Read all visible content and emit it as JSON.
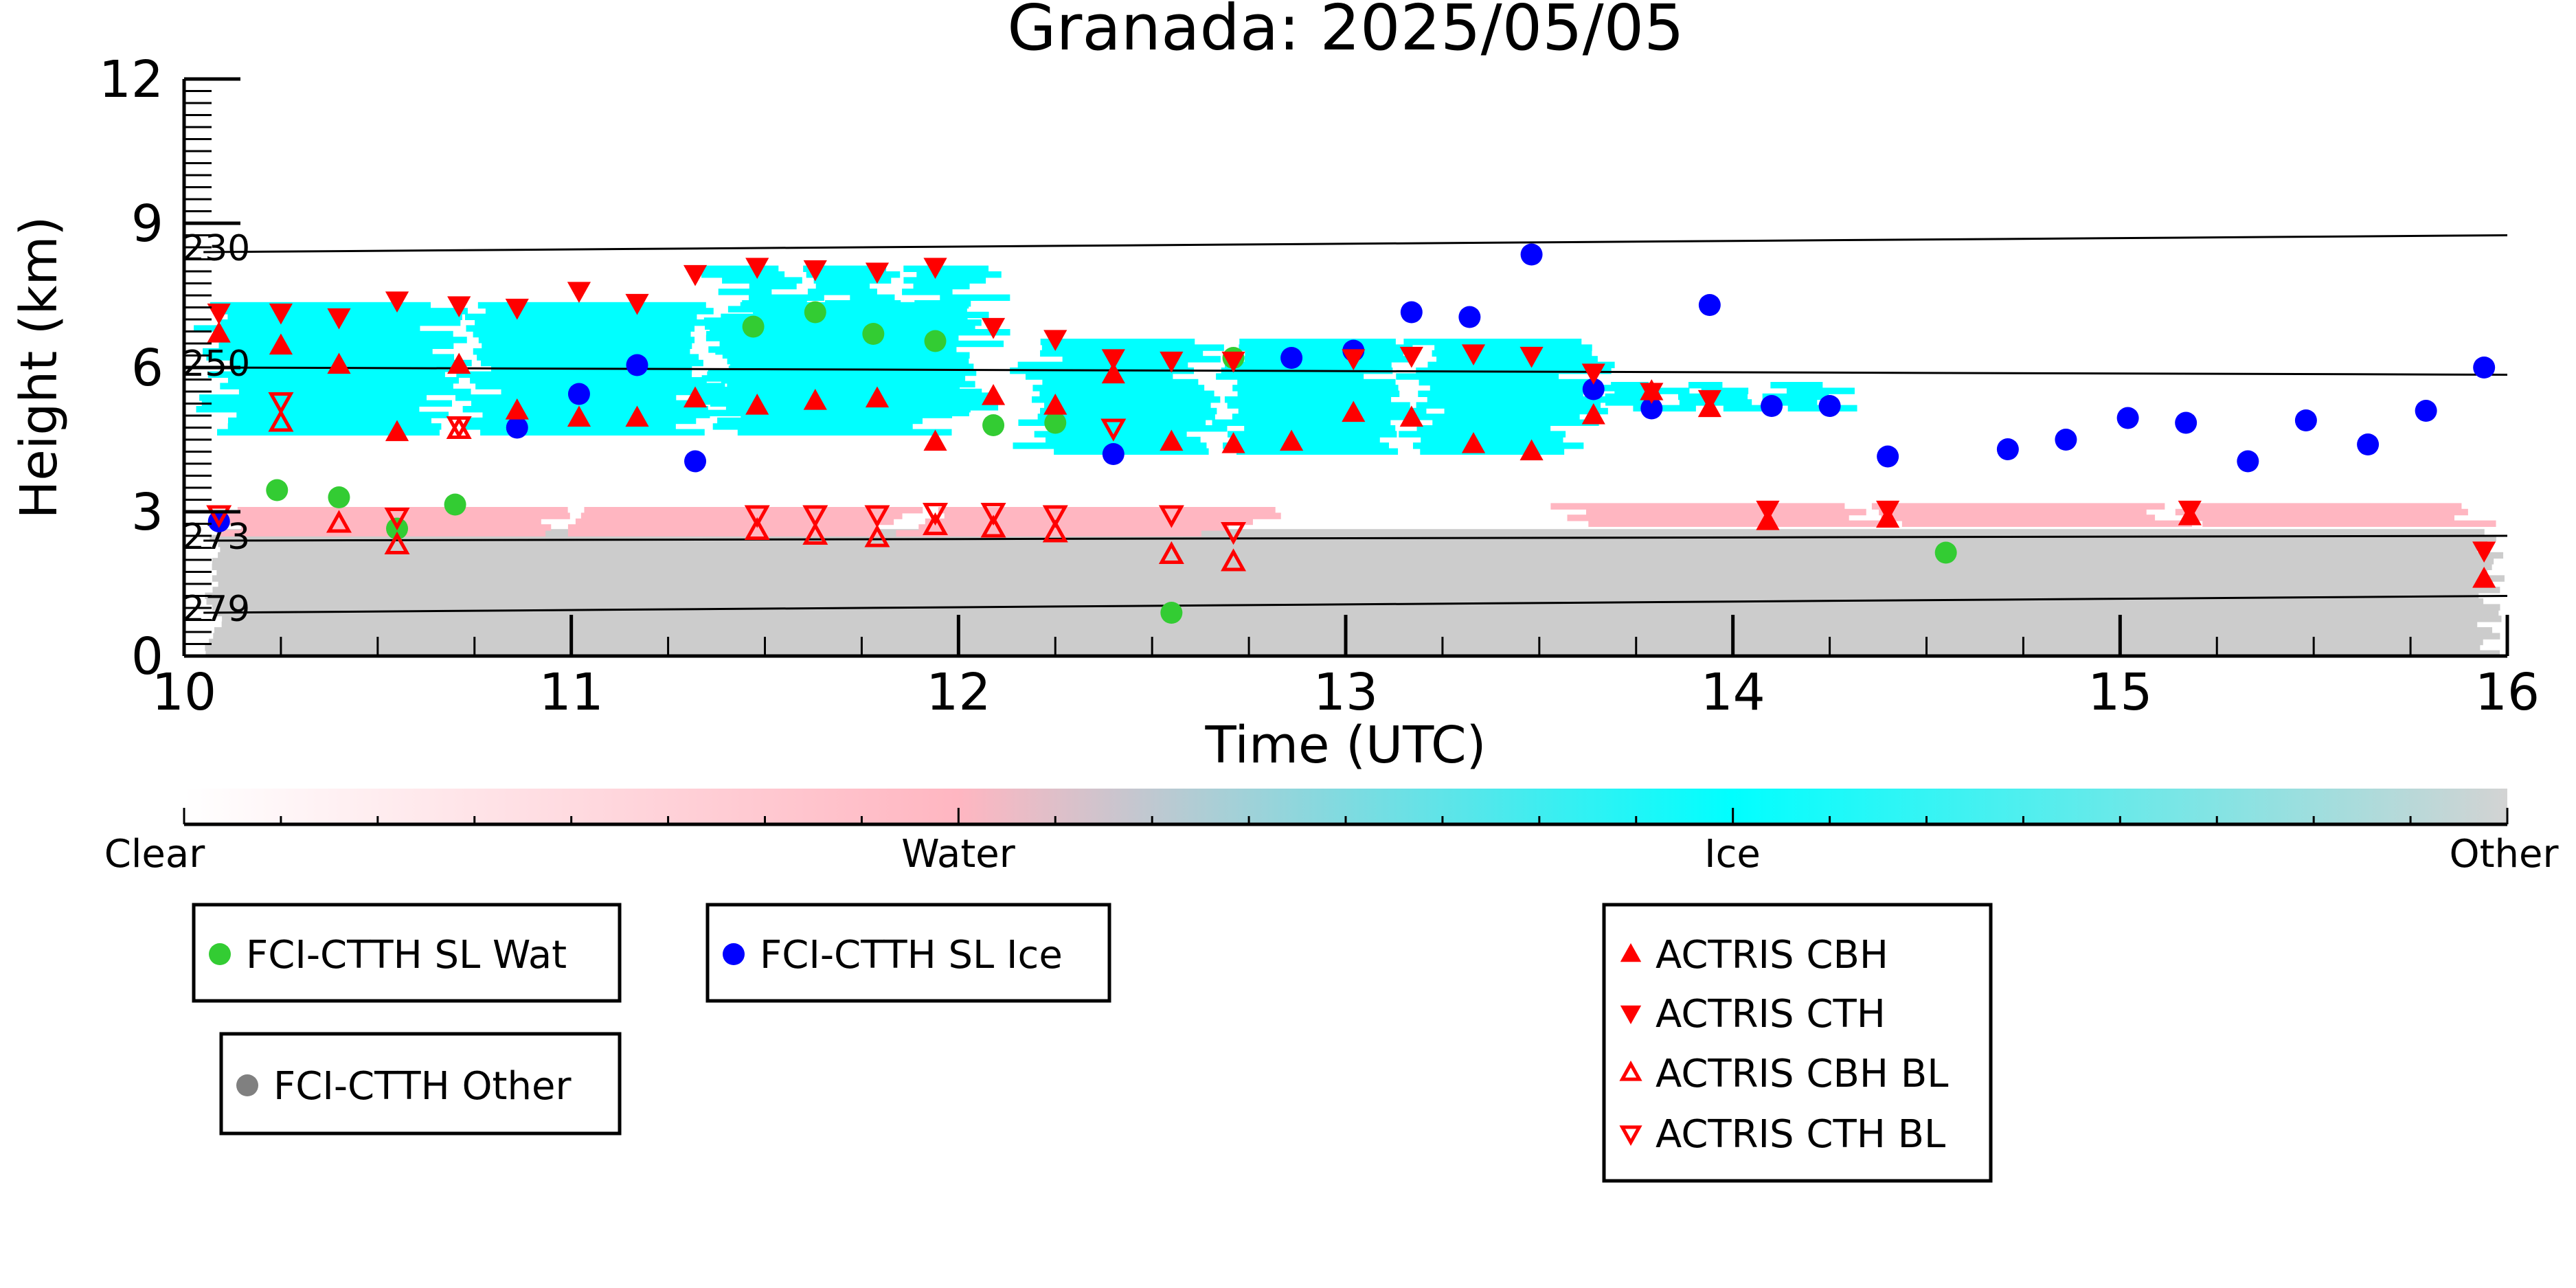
{
  "chart_data": {
    "type": "scatter",
    "title": "Granada: 2025/05/05",
    "xlabel": "Time (UTC)",
    "ylabel": "Height (km)",
    "xlim": [
      10,
      16
    ],
    "ylim": [
      0,
      12
    ],
    "xticks": [
      {
        "v": 10,
        "label": "10"
      },
      {
        "v": 11,
        "label": "11"
      },
      {
        "v": 12,
        "label": "12"
      },
      {
        "v": 13,
        "label": "13"
      },
      {
        "v": 14,
        "label": "14"
      },
      {
        "v": 15,
        "label": "15"
      },
      {
        "v": 16,
        "label": "16"
      }
    ],
    "yticks": [
      {
        "v": 0,
        "label": "0"
      },
      {
        "v": 3,
        "label": "3"
      },
      {
        "v": 6,
        "label": "6"
      },
      {
        "v": 9,
        "label": "9"
      },
      {
        "v": 12,
        "label": "12"
      }
    ],
    "isotherms": [
      {
        "label": "230",
        "y0": 8.4,
        "y1": 8.75
      },
      {
        "label": "250",
        "y0": 6.0,
        "y1": 5.85
      },
      {
        "label": "273",
        "y0": 2.4,
        "y1": 2.5
      },
      {
        "label": "279",
        "y0": 0.9,
        "y1": 1.25
      }
    ],
    "colorbar": {
      "labels": [
        "Clear",
        "Water",
        "Ice",
        "Other"
      ],
      "stops": [
        "#ffffff",
        "#ffb6c1",
        "#00ffff",
        "#d3d3d3"
      ]
    },
    "colors": {
      "water": "#33cc33",
      "ice": "#0000ff",
      "other": "#808080",
      "actris": "#ff0000",
      "cloud_ice": "#00ffff",
      "cloud_water": "#ffb6c1",
      "cloud_other": "#cccccc"
    },
    "cloud_regions": [
      {
        "kind": "other",
        "x0": 10.05,
        "x1": 16.0,
        "y0": 0.0,
        "y1": 2.6
      },
      {
        "kind": "water",
        "x0": 10.05,
        "x1": 12.85,
        "y0": 2.5,
        "y1": 3.1
      },
      {
        "kind": "water",
        "x0": 13.5,
        "x1": 16.0,
        "y0": 2.7,
        "y1": 3.1
      },
      {
        "kind": "ice",
        "x0": 10.0,
        "x1": 12.1,
        "y0": 4.6,
        "y1": 7.3
      },
      {
        "kind": "ice",
        "x0": 11.3,
        "x1": 12.15,
        "y0": 5.0,
        "y1": 8.1
      },
      {
        "kind": "ice",
        "x0": 12.1,
        "x1": 13.75,
        "y0": 4.2,
        "y1": 6.6
      },
      {
        "kind": "ice",
        "x0": 13.6,
        "x1": 14.35,
        "y0": 5.1,
        "y1": 5.6
      }
    ],
    "series": [
      {
        "name": "FCI-CTTH SL Wat",
        "marker": "circle",
        "points": [
          [
            10.24,
            3.45
          ],
          [
            10.4,
            3.3
          ],
          [
            10.55,
            2.65
          ],
          [
            10.7,
            3.15
          ],
          [
            11.47,
            6.85
          ],
          [
            11.63,
            7.15
          ],
          [
            11.78,
            6.7
          ],
          [
            11.94,
            6.55
          ],
          [
            12.09,
            4.8
          ],
          [
            12.25,
            4.85
          ],
          [
            12.55,
            0.9
          ],
          [
            12.71,
            6.2
          ],
          [
            14.55,
            2.15
          ]
        ]
      },
      {
        "name": "FCI-CTTH SL Ice",
        "marker": "circle",
        "points": [
          [
            10.09,
            2.8
          ],
          [
            10.86,
            4.75
          ],
          [
            11.02,
            5.45
          ],
          [
            11.17,
            6.05
          ],
          [
            11.32,
            4.05
          ],
          [
            12.4,
            4.2
          ],
          [
            12.86,
            6.2
          ],
          [
            13.02,
            6.35
          ],
          [
            13.17,
            7.15
          ],
          [
            13.32,
            7.05
          ],
          [
            13.48,
            8.35
          ],
          [
            13.64,
            5.55
          ],
          [
            13.79,
            5.15
          ],
          [
            13.94,
            7.3
          ],
          [
            14.1,
            5.2
          ],
          [
            14.25,
            5.2
          ],
          [
            14.4,
            4.15
          ],
          [
            14.71,
            4.3
          ],
          [
            14.86,
            4.5
          ],
          [
            15.02,
            4.95
          ],
          [
            15.17,
            4.85
          ],
          [
            15.33,
            4.05
          ],
          [
            15.48,
            4.9
          ],
          [
            15.64,
            4.4
          ],
          [
            15.79,
            5.1
          ],
          [
            15.94,
            6.0
          ]
        ]
      },
      {
        "name": "FCI-CTTH Other",
        "marker": "circle",
        "points": []
      },
      {
        "name": "ACTRIS CBH",
        "marker": "triangle-up",
        "filled": true,
        "points": [
          [
            10.09,
            6.7
          ],
          [
            10.25,
            6.45
          ],
          [
            10.4,
            6.05
          ],
          [
            10.55,
            4.65
          ],
          [
            10.71,
            6.05
          ],
          [
            10.86,
            5.1
          ],
          [
            11.02,
            4.95
          ],
          [
            11.17,
            4.95
          ],
          [
            11.32,
            5.35
          ],
          [
            11.48,
            5.2
          ],
          [
            11.63,
            5.3
          ],
          [
            11.79,
            5.35
          ],
          [
            11.94,
            4.45
          ],
          [
            12.09,
            5.4
          ],
          [
            12.25,
            5.2
          ],
          [
            12.4,
            5.85
          ],
          [
            12.55,
            4.45
          ],
          [
            12.71,
            4.4
          ],
          [
            12.86,
            4.45
          ],
          [
            13.02,
            5.05
          ],
          [
            13.17,
            4.95
          ],
          [
            13.33,
            4.4
          ],
          [
            13.48,
            4.25
          ],
          [
            13.64,
            5.0
          ],
          [
            13.79,
            5.5
          ],
          [
            13.94,
            5.15
          ],
          [
            14.09,
            2.8
          ],
          [
            14.4,
            2.85
          ],
          [
            15.18,
            2.9
          ],
          [
            15.94,
            1.6
          ]
        ]
      },
      {
        "name": "ACTRIS CTH",
        "marker": "triangle-down",
        "filled": true,
        "points": [
          [
            10.09,
            7.15
          ],
          [
            10.25,
            7.15
          ],
          [
            10.4,
            7.05
          ],
          [
            10.55,
            7.4
          ],
          [
            10.71,
            7.3
          ],
          [
            10.86,
            7.25
          ],
          [
            11.02,
            7.6
          ],
          [
            11.17,
            7.35
          ],
          [
            11.32,
            7.95
          ],
          [
            11.48,
            8.1
          ],
          [
            11.63,
            8.05
          ],
          [
            11.79,
            8.0
          ],
          [
            11.94,
            8.1
          ],
          [
            12.09,
            6.85
          ],
          [
            12.25,
            6.6
          ],
          [
            12.4,
            6.2
          ],
          [
            12.55,
            6.15
          ],
          [
            12.71,
            6.15
          ],
          [
            13.02,
            6.2
          ],
          [
            13.17,
            6.25
          ],
          [
            13.33,
            6.3
          ],
          [
            13.48,
            6.25
          ],
          [
            13.64,
            5.9
          ],
          [
            13.79,
            5.5
          ],
          [
            13.94,
            5.35
          ],
          [
            14.09,
            3.05
          ],
          [
            14.4,
            3.05
          ],
          [
            15.18,
            3.05
          ],
          [
            15.94,
            2.2
          ]
        ]
      },
      {
        "name": "ACTRIS CBH BL",
        "marker": "triangle-up",
        "filled": false,
        "points": [
          [
            10.25,
            4.85
          ],
          [
            10.4,
            2.75
          ],
          [
            10.55,
            2.3
          ],
          [
            10.71,
            4.7
          ],
          [
            11.48,
            2.6
          ],
          [
            11.63,
            2.5
          ],
          [
            11.79,
            2.45
          ],
          [
            11.94,
            2.7
          ],
          [
            12.09,
            2.65
          ],
          [
            12.25,
            2.55
          ],
          [
            12.55,
            2.1
          ],
          [
            12.71,
            1.95
          ]
        ]
      },
      {
        "name": "ACTRIS CTH BL",
        "marker": "triangle-down",
        "filled": false,
        "points": [
          [
            10.09,
            2.95
          ],
          [
            10.25,
            5.3
          ],
          [
            10.55,
            2.9
          ],
          [
            10.71,
            4.8
          ],
          [
            11.48,
            2.95
          ],
          [
            11.63,
            2.95
          ],
          [
            11.79,
            2.95
          ],
          [
            11.94,
            3.0
          ],
          [
            12.09,
            3.0
          ],
          [
            12.25,
            2.95
          ],
          [
            12.4,
            4.75
          ],
          [
            12.55,
            2.95
          ],
          [
            12.71,
            2.6
          ]
        ]
      }
    ],
    "legend": [
      {
        "label": "FCI-CTTH SL Wat"
      },
      {
        "label": "FCI-CTTH SL Ice"
      },
      {
        "label": "FCI-CTTH Other"
      },
      {
        "labels": [
          "ACTRIS CBH",
          "ACTRIS CTH",
          "ACTRIS CBH BL",
          "ACTRIS CTH BL"
        ]
      }
    ]
  }
}
